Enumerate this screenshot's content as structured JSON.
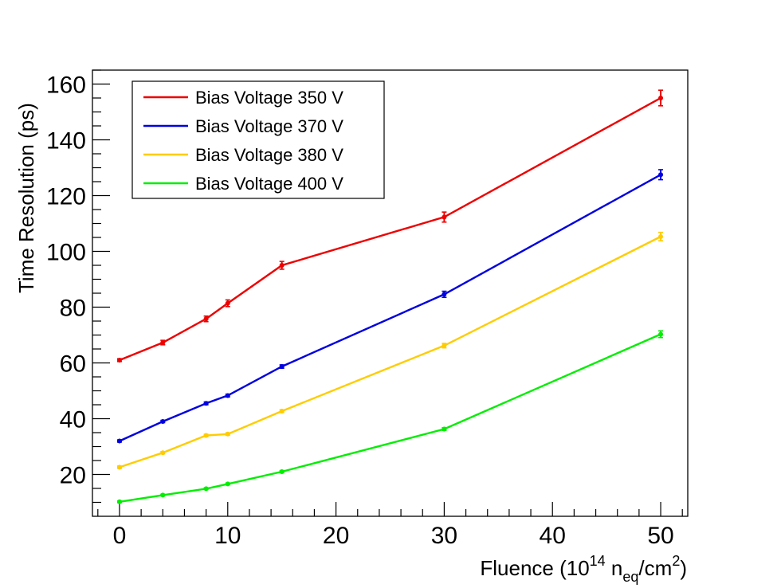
{
  "chart_data": {
    "type": "line",
    "title": "",
    "xlabel": {
      "main": "Fluence (10",
      "exp": "14",
      "mid": " n",
      "sub": "eq",
      "unit": "/cm",
      "unit_exp": "2",
      "close": ")"
    },
    "ylabel": "Time Resolution (ps)",
    "xlim": [
      -2.5,
      52.5
    ],
    "ylim": [
      5,
      165
    ],
    "x_ticks": [
      0,
      10,
      20,
      30,
      40,
      50
    ],
    "y_ticks": [
      20,
      40,
      60,
      80,
      100,
      120,
      140,
      160
    ],
    "legend_position": "top-left",
    "x": [
      0,
      4,
      8,
      10,
      15,
      30,
      50
    ],
    "series": [
      {
        "name": "Bias Voltage 350 V",
        "color": "#ee0000",
        "values": [
          61,
          67.3,
          75.8,
          81.4,
          95,
          112.3,
          155
        ],
        "errors": [
          0.5,
          0.8,
          1.0,
          1.2,
          1.4,
          1.8,
          2.8
        ]
      },
      {
        "name": "Bias Voltage 370 V",
        "color": "#0000e0",
        "values": [
          32,
          39,
          45.5,
          48.3,
          58.7,
          84.6,
          127.5
        ],
        "errors": [
          0.4,
          0.4,
          0.5,
          0.5,
          0.6,
          1.1,
          1.8
        ]
      },
      {
        "name": "Bias Voltage 380 V",
        "color": "#ffcc00",
        "values": [
          22.6,
          27.8,
          34,
          34.5,
          42.7,
          66.2,
          105.3
        ],
        "errors": [
          0.4,
          0.4,
          0.4,
          0.4,
          0.5,
          0.8,
          1.5
        ]
      },
      {
        "name": "Bias Voltage 400 V",
        "color": "#00ee00",
        "values": [
          10.2,
          12.6,
          14.9,
          16.6,
          21,
          36.3,
          70.3
        ],
        "errors": [
          0.3,
          0.3,
          0.3,
          0.3,
          0.4,
          0.5,
          1.2
        ]
      }
    ]
  }
}
